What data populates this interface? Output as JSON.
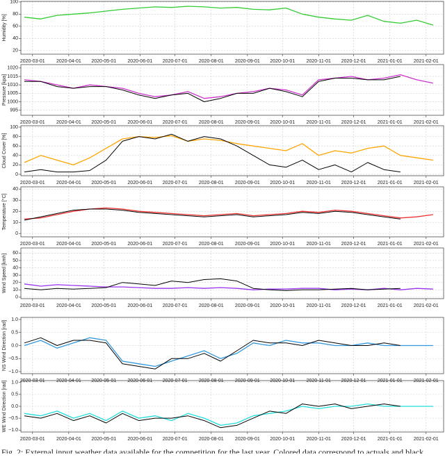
{
  "chart_data": [
    {
      "type": "line",
      "y_label": "Humidity [%]",
      "ylim": [
        14,
        101
      ],
      "yticks": [
        20,
        40,
        60,
        80,
        100
      ],
      "xlim": [
        "2020-02-20",
        "2021-02-16"
      ],
      "xticks": [
        "2020-03-01",
        "2020-04-01",
        "2020-05-01",
        "2020-06-01",
        "2020-07-01",
        "2020-08-01",
        "2020-09-01",
        "2020-10-01",
        "2020-11-01",
        "2020-12-01",
        "2021-01-01",
        "2021-02-01"
      ],
      "x": [
        "2020-02-23",
        "2020-03-08",
        "2020-03-22",
        "2020-04-05",
        "2020-04-19",
        "2020-05-03",
        "2020-05-17",
        "2020-05-31",
        "2020-06-14",
        "2020-06-28",
        "2020-07-12",
        "2020-07-26",
        "2020-08-09",
        "2020-08-23",
        "2020-09-06",
        "2020-09-20",
        "2020-10-04",
        "2020-10-18",
        "2020-11-01",
        "2020-11-15",
        "2020-11-29",
        "2020-12-13",
        "2020-12-27",
        "2021-01-10",
        "2021-01-24",
        "2021-02-07"
      ],
      "grid": true,
      "series": [
        {
          "color": "#33cc33",
          "values": [
            75,
            72,
            78,
            80,
            82,
            85,
            88,
            90,
            92,
            91,
            93,
            92,
            90,
            91,
            88,
            87,
            90,
            80,
            75,
            72,
            70,
            78,
            68,
            65,
            70,
            62
          ]
        }
      ]
    },
    {
      "type": "line",
      "y_label": "Pressure [kpa]",
      "ylim": [
        992,
        1022
      ],
      "yticks": [
        995,
        1000,
        1005,
        1010,
        1015,
        1020
      ],
      "xlim": [
        "2020-02-20",
        "2021-02-16"
      ],
      "xticks": [
        "2020-03-01",
        "2020-04-01",
        "2020-05-01",
        "2020-06-01",
        "2020-07-01",
        "2020-08-01",
        "2020-09-01",
        "2020-10-01",
        "2020-11-01",
        "2020-12-01",
        "2021-01-01",
        "2021-02-01"
      ],
      "x": [
        "2020-02-23",
        "2020-03-08",
        "2020-03-22",
        "2020-04-05",
        "2020-04-19",
        "2020-05-03",
        "2020-05-17",
        "2020-05-31",
        "2020-06-14",
        "2020-06-28",
        "2020-07-12",
        "2020-07-26",
        "2020-08-09",
        "2020-08-23",
        "2020-09-06",
        "2020-09-20",
        "2020-10-04",
        "2020-10-18",
        "2020-11-01",
        "2020-11-15",
        "2020-11-29",
        "2020-12-13",
        "2020-12-27",
        "2021-01-10",
        "2021-01-24",
        "2021-02-07"
      ],
      "grid": true,
      "series": [
        {
          "color": "#cc33cc",
          "values": [
            1013,
            1012,
            1010,
            1008,
            1010,
            1009,
            1008,
            1005,
            1003,
            1004,
            1006,
            1002,
            1003,
            1005,
            1006,
            1008,
            1007,
            1004,
            1013,
            1014,
            1015,
            1013,
            1014,
            1016,
            1013,
            1011
          ]
        },
        {
          "color": "#000000",
          "values": [
            1012,
            1012,
            1009,
            1008,
            1009,
            1009,
            1007,
            1004,
            1002,
            1004,
            1005,
            1000,
            1002,
            1005,
            1005,
            1008,
            1006,
            1003,
            1012,
            1014,
            1014,
            1013,
            1013,
            1015,
            null,
            null
          ]
        }
      ]
    },
    {
      "type": "line",
      "y_label": "Cloud Cover [%]",
      "ylim": [
        -3,
        103
      ],
      "yticks": [
        0,
        20,
        40,
        60,
        80,
        100
      ],
      "xlim": [
        "2020-02-20",
        "2021-02-16"
      ],
      "xticks": [
        "2020-03-01",
        "2020-04-01",
        "2020-05-01",
        "2020-06-01",
        "2020-07-01",
        "2020-08-01",
        "2020-09-01",
        "2020-10-01",
        "2020-11-01",
        "2020-12-01",
        "2021-01-01",
        "2021-02-01"
      ],
      "x": [
        "2020-02-23",
        "2020-03-08",
        "2020-03-22",
        "2020-04-05",
        "2020-04-19",
        "2020-05-03",
        "2020-05-17",
        "2020-05-31",
        "2020-06-14",
        "2020-06-28",
        "2020-07-12",
        "2020-07-26",
        "2020-08-09",
        "2020-08-23",
        "2020-09-06",
        "2020-09-20",
        "2020-10-04",
        "2020-10-18",
        "2020-11-01",
        "2020-11-15",
        "2020-11-29",
        "2020-12-13",
        "2020-12-27",
        "2021-01-10",
        "2021-01-24",
        "2021-02-07"
      ],
      "grid": true,
      "series": [
        {
          "color": "#ffa500",
          "values": [
            25,
            40,
            30,
            20,
            35,
            55,
            75,
            80,
            78,
            82,
            70,
            75,
            72,
            65,
            60,
            55,
            50,
            65,
            40,
            50,
            45,
            55,
            60,
            40,
            35,
            30
          ]
        },
        {
          "color": "#000000",
          "values": [
            5,
            10,
            5,
            5,
            8,
            30,
            70,
            80,
            75,
            85,
            70,
            80,
            75,
            60,
            40,
            20,
            15,
            30,
            10,
            20,
            5,
            25,
            10,
            5,
            null,
            null
          ]
        }
      ]
    },
    {
      "type": "line",
      "y_label": "Temperature [°C]",
      "ylim": [
        -3,
        42
      ],
      "yticks": [
        0,
        10,
        20,
        30,
        40
      ],
      "xlim": [
        "2020-02-20",
        "2021-02-16"
      ],
      "xticks": [
        "2020-03-01",
        "2020-04-01",
        "2020-05-01",
        "2020-06-01",
        "2020-07-01",
        "2020-08-01",
        "2020-09-01",
        "2020-10-01",
        "2020-11-01",
        "2020-12-01",
        "2021-01-01",
        "2021-02-01"
      ],
      "x": [
        "2020-02-23",
        "2020-03-08",
        "2020-03-22",
        "2020-04-05",
        "2020-04-19",
        "2020-05-03",
        "2020-05-17",
        "2020-05-31",
        "2020-06-14",
        "2020-06-28",
        "2020-07-12",
        "2020-07-26",
        "2020-08-09",
        "2020-08-23",
        "2020-09-06",
        "2020-09-20",
        "2020-10-04",
        "2020-10-18",
        "2020-11-01",
        "2020-11-15",
        "2020-11-29",
        "2020-12-13",
        "2020-12-27",
        "2021-01-10",
        "2021-01-24",
        "2021-02-07"
      ],
      "grid": true,
      "series": [
        {
          "color": "#ee3333",
          "values": [
            13,
            14,
            17,
            20,
            22,
            23,
            22,
            20,
            19,
            18,
            17,
            16,
            17,
            18,
            16,
            17,
            18,
            20,
            19,
            21,
            20,
            18,
            16,
            14,
            15,
            17
          ]
        },
        {
          "color": "#000000",
          "values": [
            12,
            15,
            18,
            21,
            22,
            22,
            21,
            19,
            18,
            17,
            16,
            15,
            16,
            17,
            15,
            16,
            17,
            19,
            18,
            20,
            19,
            17,
            15,
            13,
            null,
            null
          ]
        }
      ]
    },
    {
      "type": "line",
      "y_label": "Wind Speed [kmh]",
      "ylim": [
        -2,
        67
      ],
      "yticks": [
        0,
        10,
        20,
        30,
        40,
        50,
        60
      ],
      "xlim": [
        "2020-02-20",
        "2021-02-16"
      ],
      "xticks": [
        "2020-03-01",
        "2020-04-01",
        "2020-05-01",
        "2020-06-01",
        "2020-07-01",
        "2020-08-01",
        "2020-09-01",
        "2020-10-01",
        "2020-11-01",
        "2020-12-01",
        "2021-01-01",
        "2021-02-01"
      ],
      "x": [
        "2020-02-23",
        "2020-03-08",
        "2020-03-22",
        "2020-04-05",
        "2020-04-19",
        "2020-05-03",
        "2020-05-17",
        "2020-05-31",
        "2020-06-14",
        "2020-06-28",
        "2020-07-12",
        "2020-07-26",
        "2020-08-09",
        "2020-08-23",
        "2020-09-06",
        "2020-09-20",
        "2020-10-04",
        "2020-10-18",
        "2020-11-01",
        "2020-11-15",
        "2020-11-29",
        "2020-12-13",
        "2020-12-27",
        "2021-01-10",
        "2021-01-24",
        "2021-02-07"
      ],
      "grid": true,
      "series": [
        {
          "color": "#9933ee",
          "values": [
            18,
            15,
            17,
            16,
            15,
            14,
            14,
            13,
            12,
            12,
            13,
            12,
            13,
            12,
            10,
            11,
            11,
            12,
            12,
            10,
            11,
            10,
            12,
            10,
            12,
            11
          ]
        },
        {
          "color": "#000000",
          "values": [
            12,
            10,
            12,
            11,
            12,
            13,
            20,
            18,
            16,
            22,
            20,
            24,
            25,
            22,
            12,
            10,
            9,
            10,
            10,
            11,
            12,
            10,
            11,
            12,
            null,
            null
          ]
        }
      ]
    },
    {
      "type": "line",
      "y_label": "NS Wind Direction [rad]",
      "ylim": [
        -1.08,
        1.08
      ],
      "yticks": [
        {
          "value": -1,
          "label": "−1.0"
        },
        {
          "value": -0.5,
          "label": "−0.5"
        },
        {
          "value": 0,
          "label": "0.0"
        },
        {
          "value": 0.5,
          "label": "0.5"
        },
        {
          "value": 1,
          "label": "1.0"
        }
      ],
      "xlim": [
        "2020-02-20",
        "2021-02-16"
      ],
      "xticks": [
        "2020-03-01",
        "2020-04-01",
        "2020-05-01",
        "2020-06-01",
        "2020-07-01",
        "2020-08-01",
        "2020-09-01",
        "2020-10-01",
        "2020-11-01",
        "2020-12-01",
        "2021-01-01",
        "2021-02-01"
      ],
      "x": [
        "2020-02-23",
        "2020-03-08",
        "2020-03-22",
        "2020-04-05",
        "2020-04-19",
        "2020-05-03",
        "2020-05-17",
        "2020-05-31",
        "2020-06-14",
        "2020-06-28",
        "2020-07-12",
        "2020-07-26",
        "2020-08-09",
        "2020-08-23",
        "2020-09-06",
        "2020-09-20",
        "2020-10-04",
        "2020-10-18",
        "2020-11-01",
        "2020-11-15",
        "2020-11-29",
        "2020-12-13",
        "2020-12-27",
        "2021-01-10",
        "2021-01-24",
        "2021-02-07"
      ],
      "grid": true,
      "series": [
        {
          "color": "#3399dd",
          "values": [
            0.0,
            0.2,
            -0.1,
            0.1,
            0.3,
            0.2,
            -0.6,
            -0.7,
            -0.8,
            -0.6,
            -0.4,
            -0.2,
            -0.5,
            -0.3,
            0.1,
            0.0,
            0.2,
            0.1,
            0.1,
            0.0,
            0.0,
            0.1,
            0.0,
            0.0,
            0.0,
            0.0
          ]
        },
        {
          "color": "#000000",
          "values": [
            0.1,
            0.3,
            0.0,
            0.2,
            0.2,
            0.1,
            -0.7,
            -0.8,
            -0.9,
            -0.5,
            -0.5,
            -0.3,
            -0.6,
            -0.2,
            0.2,
            0.1,
            0.1,
            0.0,
            0.2,
            0.1,
            0.0,
            0.0,
            0.1,
            0.0,
            null,
            null
          ]
        }
      ]
    },
    {
      "type": "line",
      "y_label": "WE Wind Direction [rad]",
      "ylim": [
        -1.08,
        1.08
      ],
      "yticks": [
        {
          "value": -1,
          "label": "−1.0"
        },
        {
          "value": -0.5,
          "label": "−0.5"
        },
        {
          "value": 0,
          "label": "0.0"
        },
        {
          "value": 0.5,
          "label": "0.5"
        },
        {
          "value": 1,
          "label": "1.0"
        }
      ],
      "xlim": [
        "2020-02-20",
        "2021-02-16"
      ],
      "xticks": [
        "2020-03-01",
        "2020-04-01",
        "2020-05-01",
        "2020-06-01",
        "2020-07-01",
        "2020-08-01",
        "2020-09-01",
        "2020-10-01",
        "2020-11-01",
        "2020-12-01",
        "2021-01-01",
        "2021-02-01"
      ],
      "x": [
        "2020-02-23",
        "2020-03-08",
        "2020-03-22",
        "2020-04-05",
        "2020-04-19",
        "2020-05-03",
        "2020-05-17",
        "2020-05-31",
        "2020-06-14",
        "2020-06-28",
        "2020-07-12",
        "2020-07-26",
        "2020-08-09",
        "2020-08-23",
        "2020-09-06",
        "2020-09-20",
        "2020-10-04",
        "2020-10-18",
        "2020-11-01",
        "2020-11-15",
        "2020-11-29",
        "2020-12-13",
        "2020-12-27",
        "2021-01-10",
        "2021-01-24",
        "2021-02-07"
      ],
      "grid": true,
      "series": [
        {
          "color": "#22dddd",
          "values": [
            -0.3,
            -0.4,
            -0.2,
            -0.5,
            -0.3,
            -0.6,
            -0.2,
            -0.5,
            -0.4,
            -0.6,
            -0.3,
            -0.5,
            -0.8,
            -0.7,
            -0.4,
            -0.3,
            -0.2,
            0.0,
            -0.1,
            0.0,
            0.0,
            0.1,
            0.0,
            0.0,
            0.0,
            0.0
          ]
        },
        {
          "color": "#000000",
          "values": [
            -0.4,
            -0.5,
            -0.3,
            -0.6,
            -0.4,
            -0.7,
            -0.3,
            -0.6,
            -0.5,
            -0.5,
            -0.4,
            -0.6,
            -0.9,
            -0.8,
            -0.5,
            -0.2,
            -0.3,
            0.1,
            0.0,
            0.1,
            -0.1,
            0.0,
            0.1,
            0.0,
            null,
            null
          ]
        }
      ]
    }
  ],
  "caption": "Fig. 2: External input weather data available for the competition for the last year. Colored data correspond to actuals and black"
}
